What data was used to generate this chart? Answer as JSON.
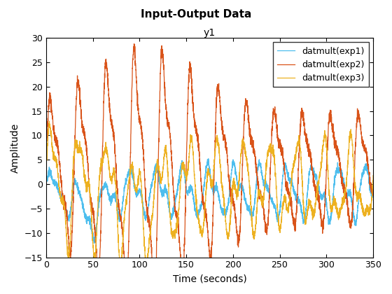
{
  "title": "Input-Output Data",
  "subtitle": "y1",
  "xlabel": "Time (seconds)",
  "ylabel": "Amplitude",
  "xlim": [
    0,
    350
  ],
  "ylim": [
    -15,
    30
  ],
  "xticks": [
    0,
    50,
    100,
    150,
    200,
    250,
    300,
    350
  ],
  "yticks": [
    -15,
    -10,
    -5,
    0,
    5,
    10,
    15,
    20,
    25,
    30
  ],
  "legend_labels": [
    "datmult(exp1)",
    "datmult(exp2)",
    "datmult(exp3)"
  ],
  "colors": [
    "#4DBEEE",
    "#D95319",
    "#EDB120"
  ],
  "linewidths": [
    0.9,
    0.9,
    0.9
  ],
  "bg_color": "#ffffff",
  "legend_loc": "upper right",
  "title_fontsize": 11,
  "subtitle_fontsize": 10,
  "label_fontsize": 10,
  "tick_fontsize": 9,
  "legend_fontsize": 9,
  "figwidth": 5.6,
  "figheight": 4.2,
  "dpi": 100
}
